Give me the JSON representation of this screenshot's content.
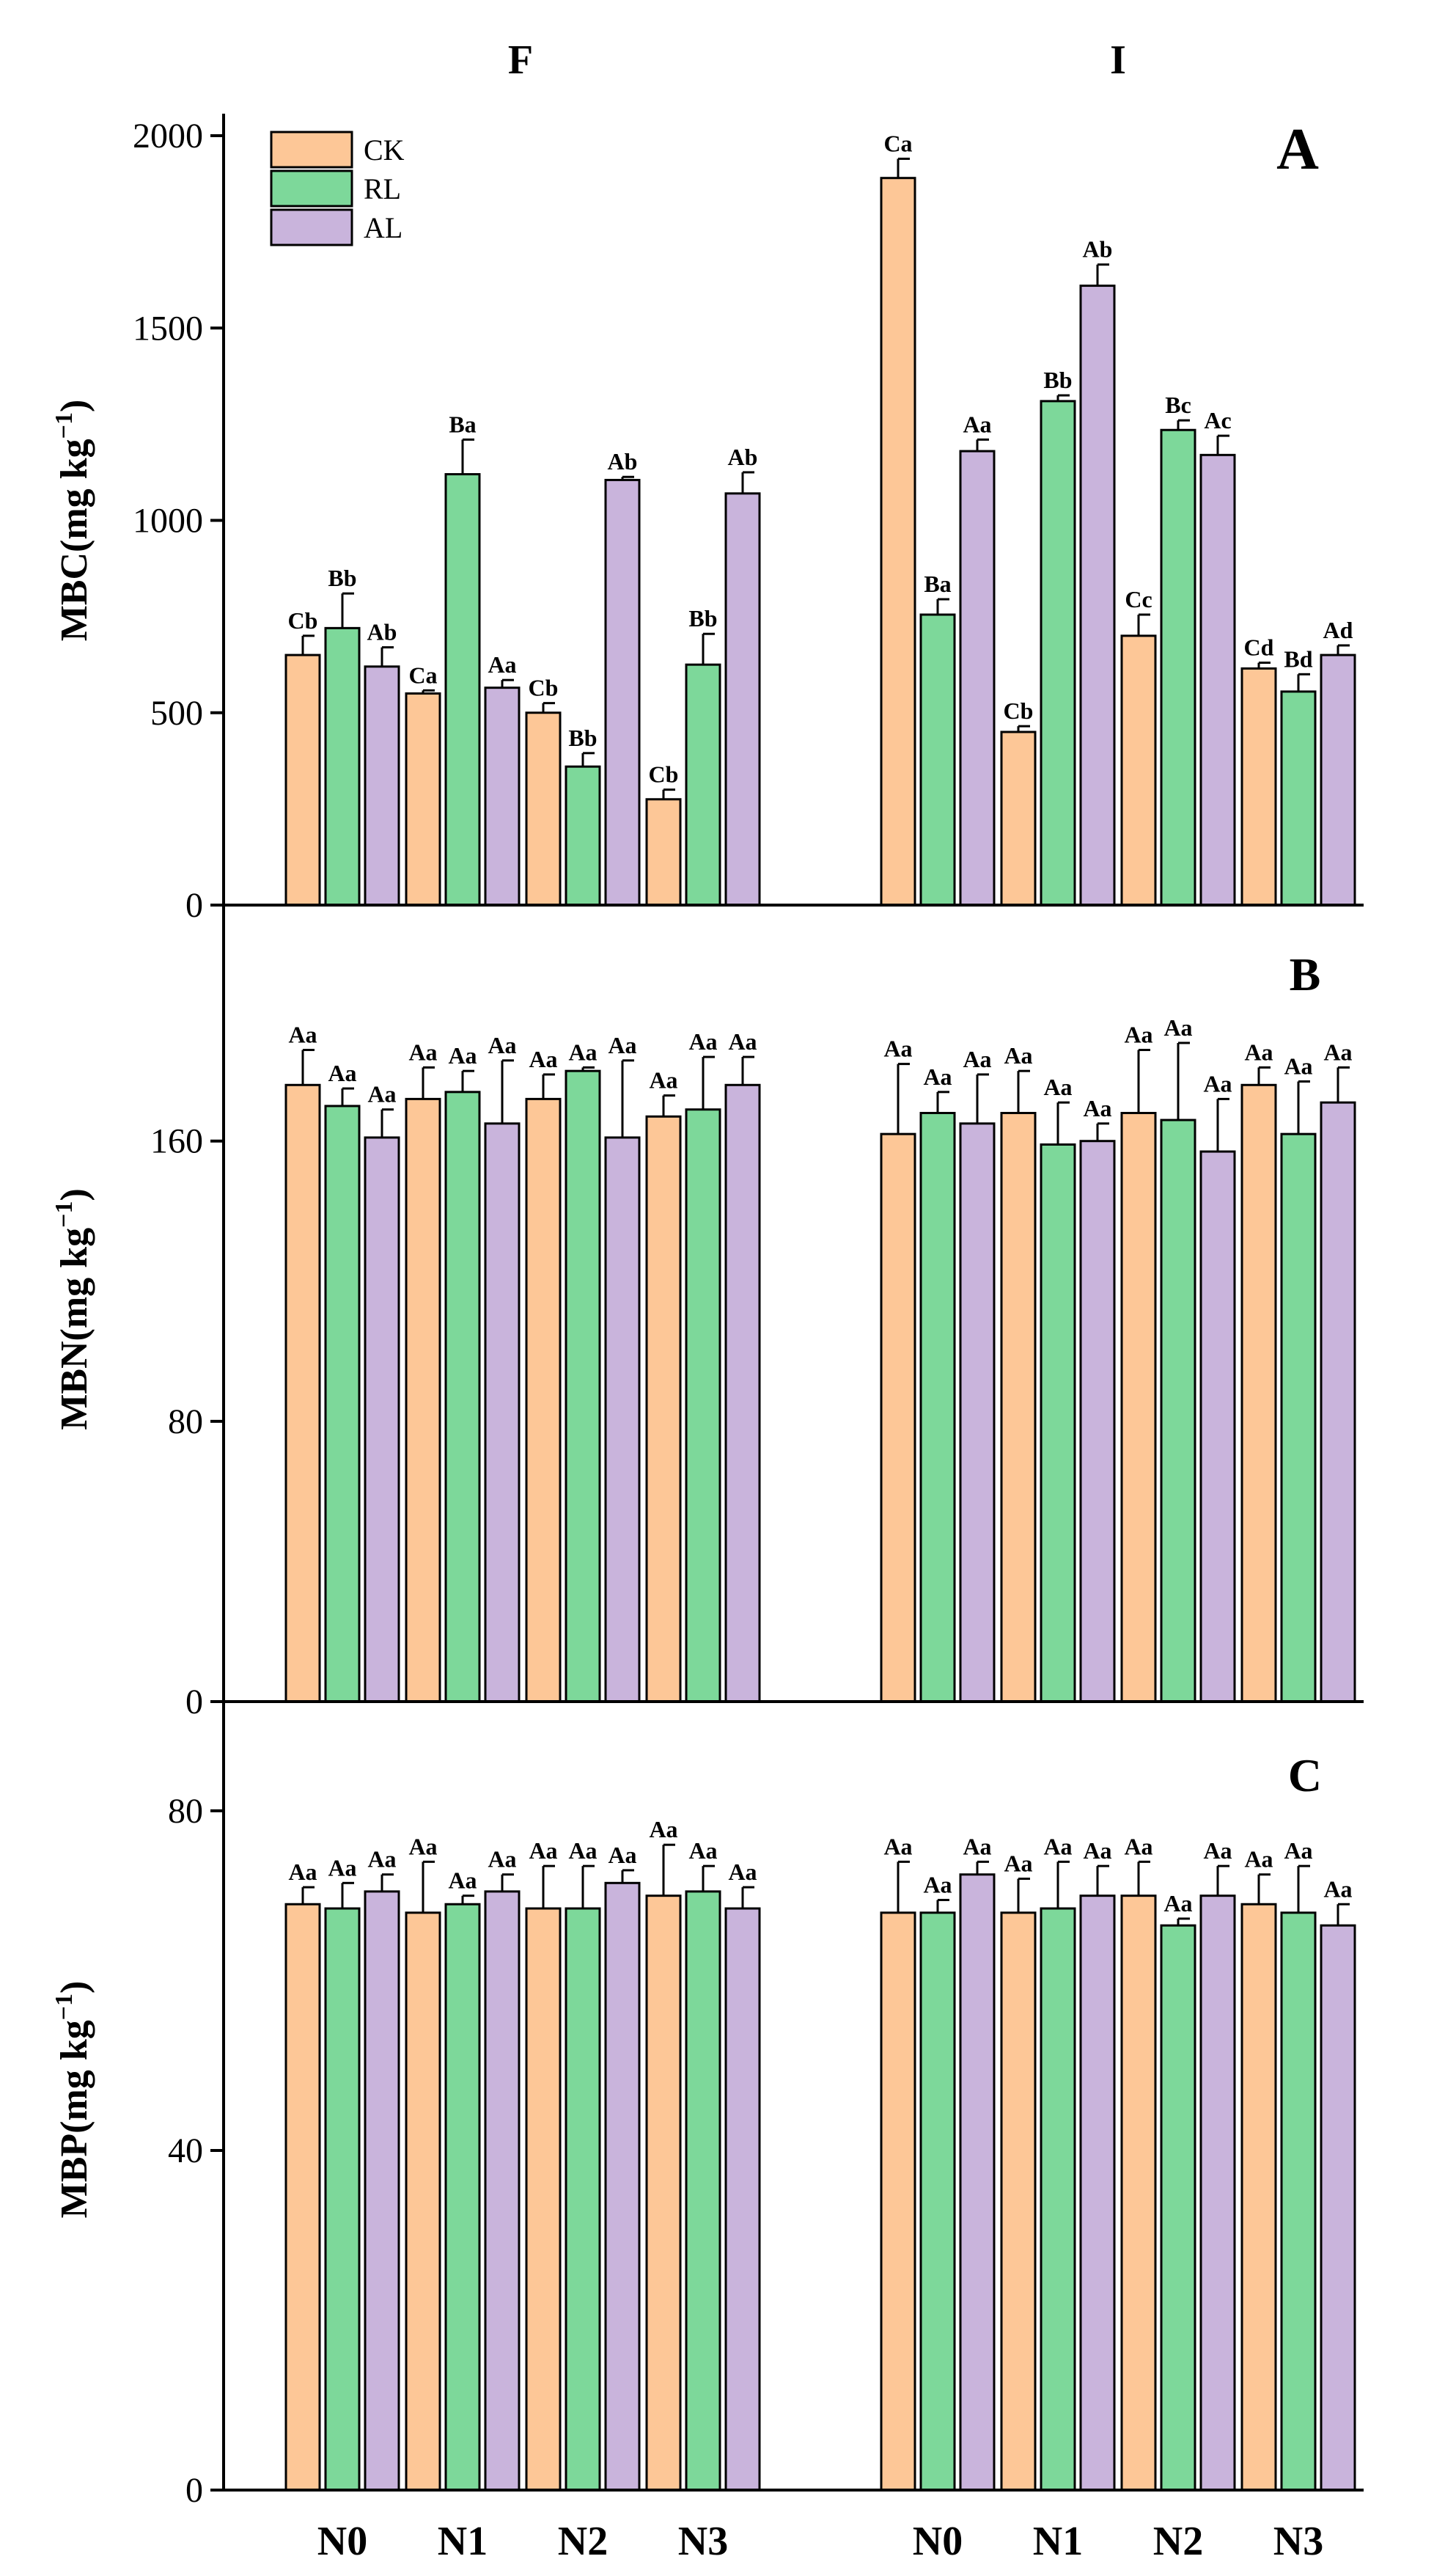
{
  "figure": {
    "group_labels": [
      "F",
      "I"
    ],
    "x_categories": [
      "N0",
      "N1",
      "N2",
      "N3"
    ]
  },
  "colors": {
    "CK": "#fdc797",
    "RL": "#7dd89a",
    "AL": "#c9b4dc",
    "axis": "#000000"
  },
  "legend": [
    {
      "name": "CK",
      "color": "#fdc797"
    },
    {
      "name": "RL",
      "color": "#7dd89a"
    },
    {
      "name": "AL",
      "color": "#c9b4dc"
    }
  ],
  "chart_data": [
    {
      "type": "bar",
      "panel": "A",
      "ylabel_main": "MBC(mg kg",
      "ylabel_sup": "−1",
      "ylabel_close": ")",
      "ylim": [
        0,
        2000
      ],
      "yticks": [
        0,
        500,
        1000,
        1500,
        2000
      ],
      "categories": [
        "N0",
        "N1",
        "N2",
        "N3"
      ],
      "groups": [
        "F",
        "I"
      ],
      "series": [
        {
          "name": "CK",
          "F": {
            "values": [
              650,
              550,
              500,
              275
            ],
            "errors": [
              50,
              8,
              25,
              25
            ],
            "labels": [
              "Cb",
              "Ca",
              "Cb",
              "Cb"
            ]
          },
          "I": {
            "values": [
              1890,
              450,
              700,
              615
            ],
            "errors": [
              50,
              15,
              55,
              15
            ],
            "labels": [
              "Ca",
              "Cb",
              "Cc",
              "Cd"
            ]
          }
        },
        {
          "name": "RL",
          "F": {
            "values": [
              720,
              1120,
              360,
              625
            ],
            "errors": [
              90,
              90,
              35,
              80
            ],
            "labels": [
              "Bb",
              "Ba",
              "Bb",
              "Bb"
            ]
          },
          "I": {
            "values": [
              755,
              1310,
              1235,
              555
            ],
            "errors": [
              40,
              15,
              25,
              45
            ],
            "labels": [
              "Ba",
              "Bb",
              "Bc",
              "Bd"
            ]
          }
        },
        {
          "name": "AL",
          "F": {
            "values": [
              620,
              565,
              1105,
              1070
            ],
            "errors": [
              50,
              20,
              8,
              55
            ],
            "labels": [
              "Ab",
              "Aa",
              "Ab",
              "Ab"
            ]
          },
          "I": {
            "values": [
              1180,
              1610,
              1170,
              650
            ],
            "errors": [
              30,
              55,
              50,
              25
            ],
            "labels": [
              "Aa",
              "Ab",
              "Ac",
              "Ad"
            ]
          }
        }
      ]
    },
    {
      "type": "bar",
      "panel": "B",
      "ylabel_main": "MBN(mg kg",
      "ylabel_sup": "−1",
      "ylabel_close": ")",
      "ylim": [
        0,
        224
      ],
      "yticks": [
        0,
        80,
        160
      ],
      "categories": [
        "N0",
        "N1",
        "N2",
        "N3"
      ],
      "groups": [
        "F",
        "I"
      ],
      "series": [
        {
          "name": "CK",
          "F": {
            "values": [
              176,
              172,
              172,
              167
            ],
            "errors": [
              10,
              9,
              7,
              6
            ],
            "labels": [
              "Aa",
              "Aa",
              "Aa",
              "Aa"
            ]
          },
          "I": {
            "values": [
              162,
              168,
              168,
              176
            ],
            "errors": [
              20,
              12,
              18,
              5
            ],
            "labels": [
              "Aa",
              "Aa",
              "Aa",
              "Aa"
            ]
          }
        },
        {
          "name": "RL",
          "F": {
            "values": [
              170,
              174,
              180,
              169
            ],
            "errors": [
              5,
              6,
              1,
              15
            ],
            "labels": [
              "Aa",
              "Aa",
              "Aa",
              "Aa"
            ]
          },
          "I": {
            "values": [
              168,
              159,
              166,
              162
            ],
            "errors": [
              6,
              12,
              22,
              15
            ],
            "labels": [
              "Aa",
              "Aa",
              "Aa",
              "Aa"
            ]
          }
        },
        {
          "name": "AL",
          "F": {
            "values": [
              161,
              165,
              161,
              176
            ],
            "errors": [
              8,
              18,
              22,
              8
            ],
            "labels": [
              "Aa",
              "Aa",
              "Aa",
              "Aa"
            ]
          },
          "I": {
            "values": [
              165,
              160,
              157,
              171
            ],
            "errors": [
              14,
              5,
              15,
              10
            ],
            "labels": [
              "Aa",
              "Aa",
              "Aa",
              "Aa"
            ]
          }
        }
      ]
    },
    {
      "type": "bar",
      "panel": "C",
      "ylabel_main": "MBP(mg kg",
      "ylabel_sup": "−1",
      "ylabel_close": ")",
      "ylim": [
        0,
        92
      ],
      "yticks": [
        0,
        40,
        80
      ],
      "categories": [
        "N0",
        "N1",
        "N2",
        "N3"
      ],
      "groups": [
        "F",
        "I"
      ],
      "series": [
        {
          "name": "CK",
          "F": {
            "values": [
              69,
              68,
              68.5,
              70
            ],
            "errors": [
              2,
              6,
              5,
              6
            ],
            "labels": [
              "Aa",
              "Aa",
              "Aa",
              "Aa"
            ]
          },
          "I": {
            "values": [
              68,
              68,
              70,
              69
            ],
            "errors": [
              6,
              4,
              4,
              3.5
            ],
            "labels": [
              "Aa",
              "Aa",
              "Aa",
              "Aa"
            ]
          }
        },
        {
          "name": "RL",
          "F": {
            "values": [
              68.5,
              69,
              68.5,
              70.5
            ],
            "errors": [
              3,
              1,
              5,
              3
            ],
            "labels": [
              "Aa",
              "Aa",
              "Aa",
              "Aa"
            ]
          },
          "I": {
            "values": [
              68,
              68.5,
              66.5,
              68
            ],
            "errors": [
              1.5,
              5.5,
              0.8,
              5.5
            ],
            "labels": [
              "Aa",
              "Aa",
              "Aa",
              "Aa"
            ]
          }
        },
        {
          "name": "AL",
          "F": {
            "values": [
              70.5,
              70.5,
              71.5,
              68.5
            ],
            "errors": [
              2,
              2,
              1.5,
              2.5
            ],
            "labels": [
              "Aa",
              "Aa",
              "Aa",
              "Aa"
            ]
          },
          "I": {
            "values": [
              72.5,
              70,
              70,
              66.5
            ],
            "errors": [
              1.5,
              3.5,
              3.5,
              2.5
            ],
            "labels": [
              "Aa",
              "Aa",
              "Aa",
              "Aa"
            ]
          }
        }
      ]
    }
  ]
}
